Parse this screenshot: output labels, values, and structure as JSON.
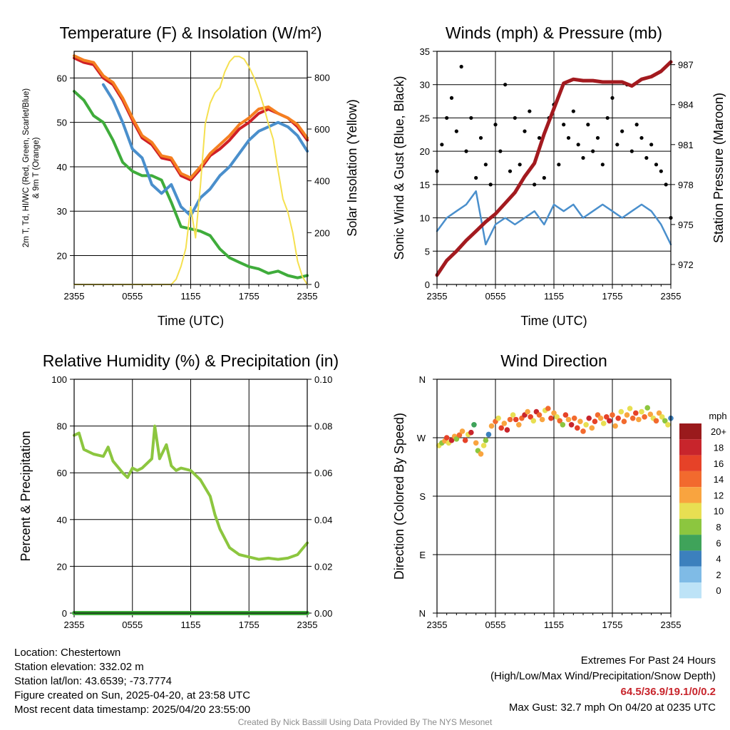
{
  "chart_data": [
    {
      "type": "line",
      "title": "Temperature (F) & Insolation (W/m²)",
      "xlabel": "Time (UTC)",
      "ylabel": "2m T, Td, HI/WC (Red, Green, Scarlet/Blue) & 9m T (Orange)",
      "y2label": "Solar Insolation (Yellow)",
      "x_ticks": [
        "2355",
        "0555",
        "1155",
        "1755",
        "2355"
      ],
      "xlim_hours": [
        0,
        24
      ],
      "ylim": [
        13.5,
        66
      ],
      "y_ticks": [
        20,
        30,
        40,
        50,
        60
      ],
      "y2lim": [
        0,
        900
      ],
      "y2_ticks": [
        0,
        200,
        400,
        600,
        800
      ],
      "grid": true,
      "series": [
        {
          "name": "2m T",
          "color": "#cf1f26",
          "x": [
            0,
            1,
            2,
            3,
            4,
            5,
            6,
            7,
            8,
            9,
            10,
            11,
            12,
            13,
            14,
            15,
            16,
            17,
            18,
            19,
            20,
            21,
            22,
            23,
            24
          ],
          "y": [
            64.5,
            63.5,
            63,
            60,
            58.5,
            55,
            50.5,
            46.5,
            45,
            42,
            41.5,
            38,
            37,
            39.5,
            42.5,
            44,
            46,
            48.5,
            50,
            52,
            53,
            52,
            51,
            49,
            46
          ]
        },
        {
          "name": "9m T",
          "color": "#f57f20",
          "x": [
            0,
            1,
            2,
            3,
            4,
            5,
            6,
            7,
            8,
            9,
            10,
            11,
            12,
            13,
            14,
            15,
            16,
            17,
            18,
            19,
            20,
            21,
            22,
            23,
            24
          ],
          "y": [
            65,
            64,
            63.5,
            60.5,
            59,
            55.5,
            51,
            47,
            45.5,
            42.5,
            42,
            38.5,
            37.5,
            40,
            43,
            45,
            47,
            49.5,
            51,
            53,
            53.5,
            52,
            51,
            49.5,
            46.5
          ]
        },
        {
          "name": "Td",
          "color": "#3fac3b",
          "x": [
            0,
            1,
            2,
            3,
            4,
            5,
            6,
            7,
            8,
            9,
            10,
            11,
            12,
            13,
            14,
            15,
            16,
            17,
            18,
            19,
            20,
            21,
            22,
            23,
            24
          ],
          "y": [
            57,
            55,
            51.5,
            50,
            46,
            41,
            39,
            38,
            38,
            37,
            32,
            26.5,
            26,
            25.5,
            24.5,
            21.5,
            19.5,
            18.5,
            17.5,
            17,
            16,
            16.5,
            15.5,
            15,
            15.5
          ]
        },
        {
          "name": "HI/WC",
          "color": "#4a8fcc",
          "x": [
            3,
            4,
            5,
            6,
            7,
            8,
            9,
            10,
            11,
            12,
            13,
            14,
            15,
            16,
            17,
            18,
            19,
            20,
            21,
            22,
            23,
            24
          ],
          "y": [
            58.5,
            55,
            50,
            44,
            42,
            36,
            34,
            36,
            31,
            29,
            33,
            35,
            38,
            40,
            43,
            46,
            48,
            49,
            50,
            49,
            47,
            43.5
          ]
        },
        {
          "name": "Solar Insolation",
          "axis": "y2",
          "color": "#f5e04f",
          "x": [
            0,
            10,
            10.5,
            11,
            11.5,
            12,
            12.5,
            13,
            13.5,
            14,
            14.5,
            15,
            15.5,
            16,
            16.5,
            17,
            17.5,
            18,
            18.5,
            19,
            19.5,
            20,
            20.5,
            21,
            21.5,
            22,
            22.5,
            23,
            23.5,
            24
          ],
          "y": [
            0,
            0,
            20,
            70,
            140,
            300,
            180,
            380,
            620,
            700,
            740,
            760,
            820,
            860,
            880,
            880,
            870,
            840,
            800,
            750,
            690,
            620,
            560,
            440,
            330,
            280,
            200,
            90,
            30,
            0
          ]
        }
      ]
    },
    {
      "type": "line",
      "title": "Winds (mph) & Pressure (mb)",
      "xlabel": "Time (UTC)",
      "ylabel": "Sonic Wind & Gust (Blue, Black)",
      "y2label": "Station Pressure (Maroon)",
      "x_ticks": [
        "2355",
        "0555",
        "1155",
        "1755",
        "2355"
      ],
      "xlim_hours": [
        0,
        24
      ],
      "ylim": [
        0,
        35
      ],
      "y_ticks": [
        0,
        5,
        10,
        15,
        20,
        25,
        30,
        35
      ],
      "y2lim": [
        970.5,
        988
      ],
      "y2_ticks": [
        972,
        975,
        978,
        981,
        984,
        987
      ],
      "grid": true,
      "series": [
        {
          "name": "Sonic Wind",
          "color": "#4a8fcc",
          "x": [
            0,
            1,
            2,
            3,
            4,
            5,
            6,
            7,
            8,
            9,
            10,
            11,
            12,
            13,
            14,
            15,
            16,
            17,
            18,
            19,
            20,
            21,
            22,
            23,
            24
          ],
          "y": [
            8,
            10,
            11,
            12,
            14,
            6,
            9,
            10,
            9,
            10,
            11,
            9,
            12,
            11,
            12,
            10,
            11,
            12,
            11,
            10,
            11,
            12,
            11,
            9,
            6
          ]
        },
        {
          "name": "Gust",
          "color": "#000000",
          "x": [
            0,
            0.5,
            1,
            1.5,
            2,
            2.5,
            3,
            3.5,
            4,
            4.5,
            5,
            5.5,
            6,
            6.5,
            7,
            7.5,
            8,
            8.5,
            9,
            9.5,
            10,
            10.5,
            11,
            11.5,
            12,
            12.5,
            13,
            13.5,
            14,
            14.5,
            15,
            15.5,
            16,
            16.5,
            17,
            17.5,
            18,
            18.5,
            19,
            19.5,
            20,
            20.5,
            21,
            21.5,
            22,
            22.5,
            23,
            23.5,
            24
          ],
          "y": [
            17,
            21,
            25,
            28,
            23,
            32.7,
            20,
            25,
            16,
            22,
            18,
            15,
            24,
            20,
            30,
            17,
            25,
            18,
            23,
            26,
            15,
            22,
            16,
            25,
            27,
            18,
            24,
            22,
            26,
            21,
            19,
            24,
            20,
            22,
            18,
            25,
            28,
            21,
            23,
            30,
            20,
            24,
            22,
            19,
            21,
            18,
            17,
            15,
            10
          ]
        },
        {
          "name": "Station Pressure",
          "axis": "y2",
          "color": "#a31a1f",
          "x": [
            0,
            1,
            2,
            3,
            4,
            5,
            6,
            7,
            8,
            9,
            10,
            11,
            12,
            13,
            14,
            15,
            16,
            17,
            18,
            19,
            20,
            21,
            22,
            23,
            24
          ],
          "y": [
            971.2,
            972.3,
            973,
            973.8,
            974.5,
            975.2,
            975.8,
            976.6,
            977.4,
            978.6,
            979.6,
            981.8,
            983.7,
            985.6,
            985.9,
            985.8,
            985.8,
            985.7,
            985.7,
            985.7,
            985.4,
            985.9,
            986.1,
            986.5,
            987.2
          ]
        }
      ]
    },
    {
      "type": "line",
      "title": "Relative Humidity (%) & Precipitation (in)",
      "xlabel": "",
      "ylabel": "Percent & Precipitation",
      "x_ticks": [
        "2355",
        "0555",
        "1155",
        "1755",
        "2355"
      ],
      "xlim_hours": [
        0,
        24
      ],
      "ylim": [
        0,
        100
      ],
      "y_ticks": [
        0,
        20,
        40,
        60,
        80,
        100
      ],
      "y2lim": [
        0,
        0.1
      ],
      "y2_ticks": [
        "0.00",
        "0.02",
        "0.04",
        "0.06",
        "0.08",
        "0.10"
      ],
      "grid": true,
      "series": [
        {
          "name": "Relative Humidity",
          "color": "#8cc63f",
          "x": [
            0,
            0.5,
            1,
            2,
            3,
            3.5,
            4,
            5,
            5.5,
            6,
            6.5,
            7,
            8,
            8.3,
            8.8,
            9.5,
            10,
            10.5,
            11,
            12,
            13,
            14,
            14.5,
            15,
            16,
            17,
            18,
            19,
            20,
            21,
            22,
            23,
            24
          ],
          "y": [
            76,
            77,
            70,
            68,
            67,
            71,
            65,
            60,
            58,
            62,
            61,
            62,
            66,
            80,
            66,
            72,
            63,
            61,
            62,
            61,
            57,
            50,
            42,
            36,
            28,
            25,
            24,
            23,
            23.5,
            23,
            23.5,
            25,
            30
          ]
        },
        {
          "name": "Precipitation",
          "axis": "y2",
          "color": "#3fac3b",
          "x": [
            0,
            24
          ],
          "y": [
            0,
            0
          ]
        }
      ]
    },
    {
      "type": "scatter",
      "title": "Wind Direction",
      "ylabel": "Direction (Colored By Speed)",
      "x_ticks": [
        "2355",
        "0555",
        "1155",
        "1755",
        "2355"
      ],
      "xlim_hours": [
        0,
        24
      ],
      "ylim_deg": [
        0,
        360
      ],
      "y_ticks": [
        "N",
        "W",
        "S",
        "E",
        "N"
      ],
      "y_tick_deg": [
        360,
        270,
        180,
        90,
        0
      ],
      "grid": true,
      "colorbar": {
        "unit": "mph",
        "labels": [
          "20+",
          "18",
          "16",
          "14",
          "12",
          "10",
          "8",
          "6",
          "4",
          "2",
          "0"
        ],
        "colors": [
          "#9a1a1c",
          "#c8252c",
          "#e64228",
          "#f26a2e",
          "#f9a43f",
          "#e8df52",
          "#8cc63f",
          "#3fa35a",
          "#3c80bd",
          "#7fbbe6",
          "#bde3f7"
        ]
      },
      "points": [
        [
          0.2,
          258,
          10
        ],
        [
          0.5,
          262,
          8
        ],
        [
          0.8,
          265,
          12
        ],
        [
          1.0,
          270,
          16
        ],
        [
          1.2,
          262,
          10
        ],
        [
          1.5,
          266,
          18
        ],
        [
          1.8,
          272,
          12
        ],
        [
          2.0,
          268,
          8
        ],
        [
          2.3,
          274,
          14
        ],
        [
          2.6,
          280,
          12
        ],
        [
          2.9,
          266,
          16
        ],
        [
          3.2,
          275,
          10
        ],
        [
          3.5,
          278,
          18
        ],
        [
          3.8,
          290,
          6
        ],
        [
          4.0,
          262,
          12
        ],
        [
          4.2,
          250,
          8
        ],
        [
          4.5,
          245,
          12
        ],
        [
          4.8,
          258,
          10
        ],
        [
          5.0,
          266,
          8
        ],
        [
          5.3,
          275,
          4
        ],
        [
          5.6,
          288,
          12
        ],
        [
          6.0,
          295,
          14
        ],
        [
          6.3,
          300,
          10
        ],
        [
          6.6,
          285,
          16
        ],
        [
          6.9,
          292,
          12
        ],
        [
          7.2,
          282,
          18
        ],
        [
          7.5,
          298,
          14
        ],
        [
          7.8,
          305,
          10
        ],
        [
          8.1,
          298,
          16
        ],
        [
          8.4,
          290,
          12
        ],
        [
          8.7,
          300,
          14
        ],
        [
          9.0,
          305,
          18
        ],
        [
          9.3,
          310,
          12
        ],
        [
          9.6,
          302,
          16
        ],
        [
          9.9,
          296,
          10
        ],
        [
          10.2,
          310,
          18
        ],
        [
          10.5,
          305,
          14
        ],
        [
          10.8,
          298,
          12
        ],
        [
          11.1,
          312,
          10
        ],
        [
          11.4,
          315,
          14
        ],
        [
          11.7,
          300,
          16
        ],
        [
          12.0,
          308,
          12
        ],
        [
          12.3,
          302,
          10
        ],
        [
          12.6,
          296,
          14
        ],
        [
          12.9,
          290,
          8
        ],
        [
          13.2,
          305,
          16
        ],
        [
          13.5,
          298,
          12
        ],
        [
          13.8,
          290,
          18
        ],
        [
          14.1,
          300,
          14
        ],
        [
          14.4,
          285,
          16
        ],
        [
          14.7,
          295,
          12
        ],
        [
          15.0,
          280,
          14
        ],
        [
          15.3,
          290,
          10
        ],
        [
          15.6,
          300,
          18
        ],
        [
          15.9,
          285,
          12
        ],
        [
          16.2,
          295,
          16
        ],
        [
          16.5,
          305,
          14
        ],
        [
          16.8,
          300,
          12
        ],
        [
          17.1,
          292,
          10
        ],
        [
          17.4,
          302,
          16
        ],
        [
          17.7,
          296,
          18
        ],
        [
          18.0,
          305,
          14
        ],
        [
          18.3,
          288,
          12
        ],
        [
          18.6,
          300,
          16
        ],
        [
          18.9,
          310,
          10
        ],
        [
          19.2,
          295,
          14
        ],
        [
          19.5,
          305,
          12
        ],
        [
          19.8,
          315,
          10
        ],
        [
          20.1,
          300,
          14
        ],
        [
          20.4,
          308,
          16
        ],
        [
          20.7,
          298,
          12
        ],
        [
          21.0,
          310,
          10
        ],
        [
          21.3,
          302,
          14
        ],
        [
          21.6,
          316,
          8
        ],
        [
          21.9,
          306,
          12
        ],
        [
          22.2,
          300,
          10
        ],
        [
          22.5,
          296,
          14
        ],
        [
          22.8,
          308,
          12
        ],
        [
          23.1,
          302,
          10
        ],
        [
          23.4,
          296,
          8
        ],
        [
          23.7,
          290,
          10
        ],
        [
          24.0,
          300,
          4
        ]
      ]
    }
  ],
  "info": {
    "location": "Location: Chestertown",
    "elevation": "Station elevation: 332.02 m",
    "latlon": "Station lat/lon: 43.6539; -73.7774",
    "created": "Figure created on Sun, 2025-04-20, at 23:58 UTC",
    "recent": "Most recent data timestamp: 2025/04/20 23:55:00"
  },
  "extremes": {
    "title": "Extremes For Past 24 Hours",
    "subtitle": "(High/Low/Max Wind/Precipitation/Snow Depth)",
    "values": "64.5/36.9/19.1/0/0.2",
    "gust": "Max Gust: 32.7 mph On 04/20 at 0235 UTC"
  },
  "credit": "Created By Nick Bassill Using Data Provided By The NYS Mesonet"
}
